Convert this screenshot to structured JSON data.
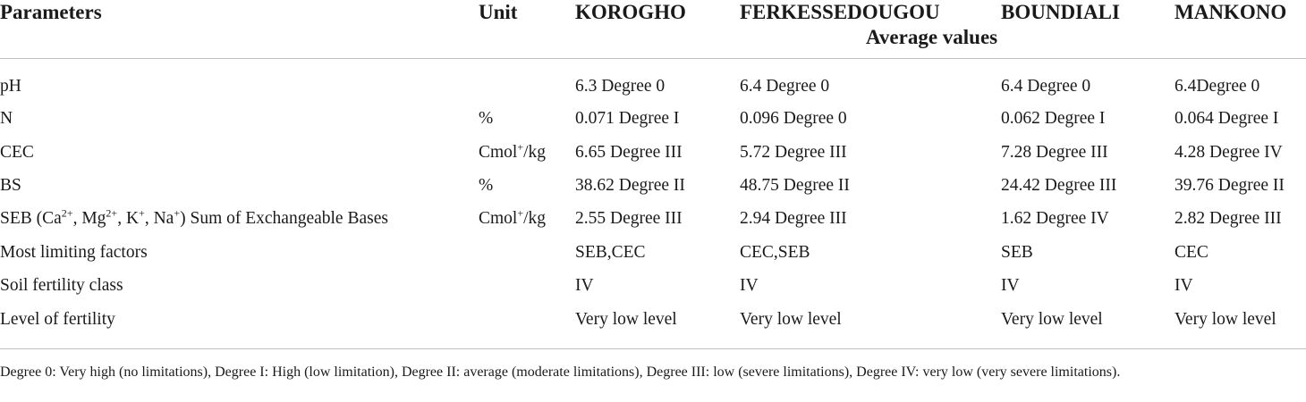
{
  "table": {
    "headers": {
      "parameters": "Parameters",
      "unit": "Unit",
      "sites": [
        "KOROGHO",
        "FERKESSEDOUGOU",
        "BOUNDIALI",
        "MANKONO"
      ],
      "average_values": "Average values"
    },
    "rows": [
      {
        "param": "pH",
        "unit": "",
        "values": [
          "6.3 Degree 0",
          "6.4 Degree 0",
          "6.4 Degree 0",
          "6.4Degree 0"
        ]
      },
      {
        "param": "N",
        "unit": "%",
        "values": [
          "0.071 Degree I",
          "0.096 Degree 0",
          "0.062 Degree I",
          "0.064 Degree I"
        ]
      },
      {
        "param": "CEC",
        "unit_base": "Cmol",
        "unit_sup": "+",
        "unit_tail": "/kg",
        "values": [
          "6.65 Degree III",
          "5.72 Degree III",
          "7.28 Degree III",
          "4.28 Degree IV"
        ]
      },
      {
        "param": "BS",
        "unit": "%",
        "values": [
          "38.62 Degree II",
          "48.75 Degree II",
          "24.42 Degree III",
          "39.76 Degree II"
        ]
      },
      {
        "param_parts": [
          "SEB (Ca",
          "2+",
          ", Mg",
          "2+",
          ", K",
          "+",
          ", Na",
          "+",
          ") Sum of Exchangeable Bases"
        ],
        "unit_base": "Cmol",
        "unit_sup": "+",
        "unit_tail": "/kg",
        "values": [
          "2.55 Degree III",
          "2.94 Degree III",
          "1.62 Degree IV",
          "2.82 Degree III"
        ]
      },
      {
        "param": "Most limiting factors",
        "unit": "",
        "values": [
          "SEB,CEC",
          "CEC,SEB",
          "SEB",
          "CEC"
        ]
      },
      {
        "param": "Soil fertility class",
        "unit": "",
        "values": [
          "IV",
          "IV",
          "IV",
          "IV"
        ]
      },
      {
        "param": "Level of fertility",
        "unit": "",
        "values": [
          "Very low level",
          "Very low level",
          "Very low level",
          "Very low level"
        ]
      }
    ]
  },
  "footnote": "Degree 0: Very high (no limitations), Degree I: High (low limitation), Degree II: average (moderate limitations), Degree III: low (severe limitations), Degree IV: very low (very severe limitations)."
}
